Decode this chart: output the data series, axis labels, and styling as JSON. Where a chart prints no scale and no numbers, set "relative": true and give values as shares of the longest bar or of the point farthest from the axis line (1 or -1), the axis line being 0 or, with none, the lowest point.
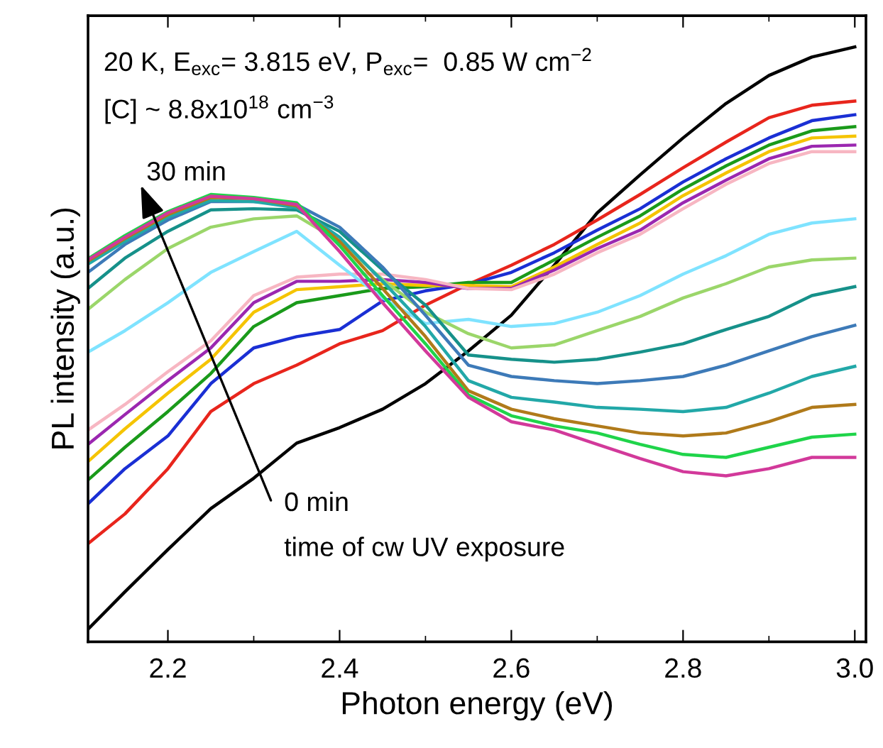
{
  "chart_data": {
    "type": "line",
    "relative": true,
    "xlabel": "Photon energy (eV)",
    "ylabel": "PL intensity (a.u.)",
    "annotations": [
      "20 K, E$_{exc}$= 3.815 eV, P$_{exc}$=  0.85 W cm$^{−2}$",
      "[C] ~ 8.8x10$^{18}$ cm$^{−3}$",
      "30 min",
      "0 min",
      "time of cw UV exposure"
    ],
    "x": [
      2.107,
      2.15,
      2.2,
      2.25,
      2.3,
      2.35,
      2.4,
      2.45,
      2.5,
      2.55,
      2.6,
      2.65,
      2.7,
      2.75,
      2.8,
      2.85,
      2.9,
      2.95,
      3.0
    ],
    "xlim": [
      2.107,
      3.013
    ],
    "xticks": [
      2.2,
      2.4,
      2.6,
      2.8,
      {
        "value": 3.0,
        "label": "3.0"
      }
    ],
    "marker": "none",
    "line_style": "solid",
    "legend": false,
    "grid": false,
    "series": [
      {
        "color": "#000000",
        "values": [
          0.021,
          0.084,
          0.155,
          0.224,
          0.275,
          0.334,
          0.36,
          0.391,
          0.434,
          0.489,
          0.549,
          0.633,
          0.721,
          0.785,
          0.847,
          0.905,
          0.952,
          0.983,
          1.0
        ]
      },
      {
        "color": "#e8251c",
        "values": [
          0.165,
          0.215,
          0.291,
          0.387,
          0.434,
          0.465,
          0.501,
          0.523,
          0.566,
          0.601,
          0.633,
          0.668,
          0.709,
          0.752,
          0.797,
          0.84,
          0.881,
          0.902,
          0.909
        ]
      },
      {
        "color": "#1a2fd4",
        "values": [
          0.232,
          0.291,
          0.346,
          0.434,
          0.494,
          0.513,
          0.525,
          0.573,
          0.59,
          0.601,
          0.621,
          0.654,
          0.692,
          0.728,
          0.773,
          0.812,
          0.847,
          0.876,
          0.886
        ]
      },
      {
        "color": "#1a9a1a",
        "values": [
          0.272,
          0.327,
          0.387,
          0.451,
          0.53,
          0.57,
          0.582,
          0.594,
          0.597,
          0.604,
          0.604,
          0.642,
          0.68,
          0.716,
          0.761,
          0.8,
          0.835,
          0.859,
          0.866
        ]
      },
      {
        "color": "#f5c400",
        "values": [
          0.303,
          0.358,
          0.418,
          0.475,
          0.554,
          0.592,
          0.597,
          0.602,
          0.599,
          0.599,
          0.597,
          0.63,
          0.668,
          0.704,
          0.75,
          0.788,
          0.824,
          0.847,
          0.85
        ]
      },
      {
        "color": "#9b27b0",
        "values": [
          0.332,
          0.382,
          0.439,
          0.494,
          0.57,
          0.606,
          0.606,
          0.609,
          0.604,
          0.594,
          0.594,
          0.625,
          0.661,
          0.692,
          0.738,
          0.776,
          0.812,
          0.833,
          0.835
        ]
      },
      {
        "color": "#f7b6c2",
        "values": [
          0.356,
          0.399,
          0.454,
          0.506,
          0.582,
          0.613,
          0.618,
          0.618,
          0.609,
          0.594,
          0.592,
          0.618,
          0.654,
          0.685,
          0.728,
          0.769,
          0.804,
          0.824,
          0.824
        ]
      },
      {
        "color": "#7fe3ff",
        "values": [
          0.487,
          0.523,
          0.57,
          0.621,
          0.656,
          0.69,
          0.633,
          0.578,
          0.535,
          0.542,
          0.53,
          0.535,
          0.554,
          0.582,
          0.618,
          0.649,
          0.685,
          0.704,
          0.711
        ]
      },
      {
        "color": "#9bd66a",
        "values": [
          0.559,
          0.609,
          0.661,
          0.697,
          0.711,
          0.716,
          0.673,
          0.609,
          0.554,
          0.518,
          0.494,
          0.499,
          0.523,
          0.547,
          0.578,
          0.602,
          0.63,
          0.642,
          0.645
        ]
      },
      {
        "color": "#16918a",
        "values": [
          0.594,
          0.645,
          0.69,
          0.726,
          0.728,
          0.726,
          0.69,
          0.625,
          0.566,
          0.482,
          0.475,
          0.47,
          0.475,
          0.487,
          0.501,
          0.525,
          0.547,
          0.582,
          0.597
        ]
      },
      {
        "color": "#3d7ab8",
        "values": [
          0.621,
          0.668,
          0.709,
          0.74,
          0.74,
          0.735,
          0.697,
          0.63,
          0.549,
          0.465,
          0.446,
          0.439,
          0.434,
          0.439,
          0.446,
          0.465,
          0.489,
          0.513,
          0.532
        ]
      },
      {
        "color": "#22a8a8",
        "values": [
          0.635,
          0.673,
          0.714,
          0.742,
          0.74,
          0.73,
          0.68,
          0.606,
          0.53,
          0.439,
          0.411,
          0.403,
          0.394,
          0.391,
          0.387,
          0.394,
          0.418,
          0.446,
          0.463
        ]
      },
      {
        "color": "#b07a1a",
        "values": [
          0.64,
          0.678,
          0.718,
          0.747,
          0.745,
          0.733,
          0.673,
          0.594,
          0.513,
          0.422,
          0.391,
          0.375,
          0.363,
          0.351,
          0.346,
          0.351,
          0.37,
          0.394,
          0.399
        ]
      },
      {
        "color": "#1fd44a",
        "values": [
          0.644,
          0.683,
          0.723,
          0.752,
          0.747,
          0.738,
          0.666,
          0.582,
          0.501,
          0.415,
          0.38,
          0.363,
          0.351,
          0.332,
          0.315,
          0.31,
          0.327,
          0.344,
          0.349
        ]
      },
      {
        "color": "#d2399a",
        "values": [
          0.642,
          0.68,
          0.721,
          0.749,
          0.745,
          0.735,
          0.656,
          0.57,
          0.489,
          0.411,
          0.37,
          0.356,
          0.332,
          0.308,
          0.286,
          0.279,
          0.291,
          0.31,
          0.31
        ]
      }
    ]
  }
}
